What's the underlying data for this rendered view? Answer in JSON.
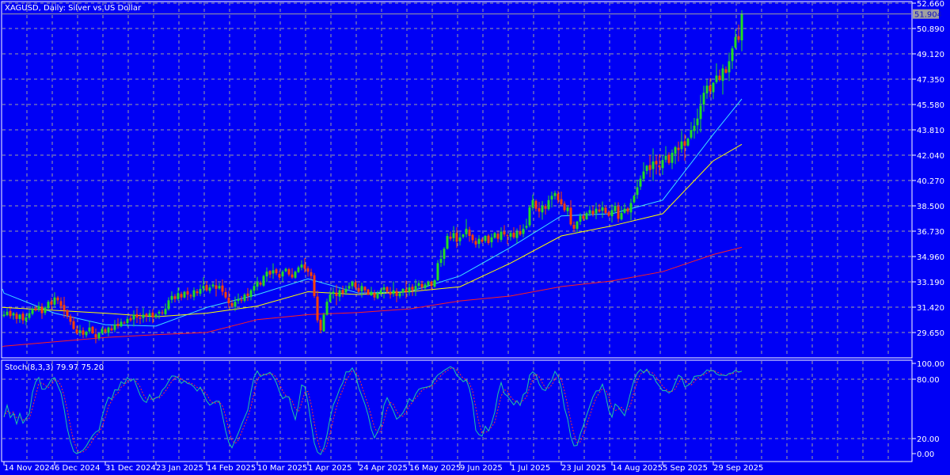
{
  "chart_data": {
    "type": "candlestick",
    "title": "XAGUSD, Daily:  Silver vs US Dollar",
    "price_ticks": [
      "52.660",
      "50.890",
      "49.120",
      "47.350",
      "45.580",
      "43.810",
      "42.040",
      "40.270",
      "38.500",
      "36.730",
      "34.960",
      "33.190",
      "31.420",
      "29.650"
    ],
    "ylim": [
      28.0,
      52.66
    ],
    "current_price": "51.904",
    "x_tick_labels": [
      "14 Nov 2024",
      "6 Dec 2024",
      "31 Dec 2024",
      "23 Jan 2025",
      "14 Feb 2025",
      "10 Mar 2025",
      "1 Apr 2025",
      "24 Apr 2025",
      "16 May 2025",
      "9 Jun 2025",
      "1 Jul 2025",
      "23 Jul 2025",
      "14 Aug 2025",
      "5 Sep 2025",
      "29 Sep 2025"
    ],
    "grid": true,
    "colors": {
      "background": "#0000f5",
      "up": "#22dd22",
      "down": "#ff4000",
      "ma_fast": "#40e0ff",
      "ma_mid": "#ffff00",
      "ma_slow": "#ff2020",
      "grid": "#a0a0a0",
      "stoch_main": "#20c8a0",
      "stoch_signal": "#ff3030"
    },
    "closes": [
      30.9,
      31.1,
      30.8,
      31.0,
      30.6,
      30.9,
      30.5,
      30.7,
      31.0,
      31.3,
      31.2,
      31.5,
      31.0,
      31.4,
      31.8,
      31.6,
      32.1,
      31.9,
      31.5,
      31.2,
      30.8,
      30.4,
      29.9,
      29.6,
      29.8,
      29.5,
      29.7,
      30.0,
      29.6,
      29.3,
      29.6,
      29.9,
      29.7,
      30.0,
      29.8,
      30.2,
      30.1,
      30.4,
      30.3,
      30.6,
      30.5,
      30.9,
      30.7,
      30.6,
      30.9,
      30.8,
      31.0,
      30.7,
      30.9,
      31.1,
      31.0,
      31.3,
      31.9,
      32.2,
      32.0,
      32.4,
      32.1,
      32.5,
      32.3,
      32.2,
      32.6,
      32.4,
      32.7,
      32.9,
      32.6,
      32.8,
      33.0,
      32.7,
      32.9,
      32.5,
      32.1,
      31.7,
      31.5,
      31.8,
      32.0,
      31.9,
      32.3,
      32.2,
      32.6,
      32.9,
      33.2,
      33.0,
      33.6,
      33.9,
      33.7,
      34.0,
      33.8,
      33.5,
      33.9,
      34.1,
      33.7,
      33.5,
      33.9,
      34.2,
      34.4,
      34.1,
      33.9,
      33.6,
      32.2,
      30.5,
      29.8,
      30.9,
      31.8,
      32.3,
      32.5,
      32.2,
      32.6,
      32.4,
      32.7,
      32.9,
      33.2,
      32.8,
      32.5,
      32.9,
      32.6,
      32.3,
      32.5,
      32.1,
      32.4,
      32.6,
      32.8,
      32.5,
      32.3,
      32.6,
      32.2,
      32.4,
      32.7,
      32.5,
      32.8,
      32.6,
      32.9,
      33.1,
      32.8,
      33.0,
      33.2,
      32.9,
      33.3,
      34.5,
      34.8,
      35.5,
      36.4,
      36.2,
      36.6,
      36.0,
      36.3,
      36.5,
      36.9,
      36.4,
      36.1,
      35.8,
      36.2,
      36.0,
      36.4,
      35.9,
      36.3,
      36.6,
      36.2,
      36.7,
      36.5,
      36.4,
      36.6,
      36.3,
      36.7,
      36.5,
      36.9,
      37.1,
      38.4,
      38.9,
      38.3,
      38.1,
      38.5,
      38.3,
      38.9,
      39.2,
      39.4,
      38.9,
      38.6,
      38.2,
      38.4,
      37.2,
      36.9,
      37.4,
      37.8,
      37.6,
      38.0,
      38.2,
      37.9,
      38.3,
      38.1,
      38.4,
      38.0,
      37.8,
      38.2,
      38.5,
      37.6,
      38.0,
      38.3,
      38.1,
      38.7,
      39.2,
      39.8,
      40.4,
      40.9,
      41.3,
      41.0,
      41.6,
      41.4,
      41.2,
      41.7,
      42.0,
      41.5,
      42.2,
      42.6,
      42.4,
      43.0,
      42.7,
      43.2,
      43.8,
      44.1,
      44.6,
      45.5,
      46.4,
      46.9,
      46.5,
      47.1,
      47.6,
      47.3,
      48.1,
      47.8,
      48.6,
      49.5,
      50.3,
      50.1,
      51.904
    ],
    "moving_averages_at_tick_labels_and_last": {
      "fast": [
        32.4,
        31.0,
        30.2,
        30.1,
        31.4,
        32.3,
        33.4,
        32.4,
        32.5,
        33.6,
        35.6,
        37.8,
        37.95,
        38.9,
        43.5,
        45.97
      ],
      "mid": [
        31.4,
        31.2,
        31.0,
        30.75,
        31.0,
        31.5,
        32.5,
        32.3,
        32.5,
        32.85,
        34.5,
        36.4,
        37.1,
        37.95,
        41.65,
        42.8
      ],
      "slow": [
        28.7,
        29.0,
        29.3,
        29.5,
        29.65,
        30.55,
        30.9,
        31.05,
        31.3,
        31.86,
        32.2,
        32.86,
        33.25,
        33.9,
        35.1,
        35.6
      ]
    },
    "stochastic": {
      "label": "Stoch(8,3,3) 79.97 75.20",
      "ticks": [
        "100.00",
        "80.00",
        "20.00",
        "0.00"
      ],
      "levels": [
        80,
        20
      ],
      "ylim": [
        0,
        100
      ]
    }
  }
}
